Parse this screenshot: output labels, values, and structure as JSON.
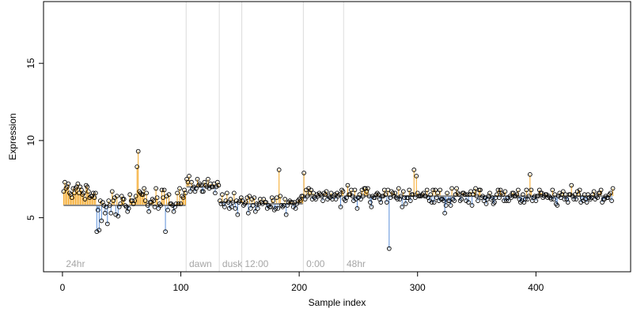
{
  "chart_data": {
    "type": "scatter",
    "xlabel": "Sample index",
    "ylabel": "Expression",
    "xlim": [
      -16,
      480
    ],
    "ylim": [
      1.5,
      19
    ],
    "x_ticks": [
      0,
      100,
      200,
      300,
      400
    ],
    "x_tick_labels": [
      "0",
      "100",
      "200",
      "300",
      "400"
    ],
    "y_ticks": [
      5,
      10,
      15
    ],
    "y_tick_labels": [
      "5",
      "10",
      "15"
    ],
    "grid": false,
    "legend": "none",
    "baseline_color": "#8a8a8a",
    "above_color": "#f5a623",
    "below_color": "#5b8fd9",
    "point_color": "#000000",
    "separator_color": "#dcdcdc",
    "groups": [
      {
        "label": "24hr",
        "start": 1,
        "end": 104,
        "baseline": 5.8
      },
      {
        "label": "dawn",
        "start": 105,
        "end": 132,
        "baseline": 7.0
      },
      {
        "label": "dusk",
        "start": 133,
        "end": 151,
        "baseline": 6.0
      },
      {
        "label": "12:00",
        "start": 152,
        "end": 203,
        "baseline": 5.9
      },
      {
        "label": "0:00",
        "start": 204,
        "end": 237,
        "baseline": 6.4
      },
      {
        "label": "48hr",
        "start": 238,
        "end": 462,
        "baseline": 6.4
      }
    ],
    "outliers": [
      [
        29,
        4.1
      ],
      [
        31,
        4.2
      ],
      [
        64,
        9.3
      ],
      [
        63,
        8.3
      ],
      [
        87,
        4.1
      ],
      [
        183,
        8.1
      ],
      [
        204,
        7.9
      ],
      [
        276,
        3.0
      ],
      [
        297,
        8.1
      ],
      [
        299,
        7.7
      ],
      [
        395,
        7.8
      ],
      [
        430,
        7.1
      ]
    ],
    "series": [
      {
        "y": [
          6.7,
          7.3,
          6.9,
          7.0,
          7.2,
          6.6,
          6.5,
          6.3,
          6.9,
          6.6,
          6.9,
          7.0,
          7.2,
          6.6,
          7.0,
          6.8,
          6.5,
          6.6,
          6.2,
          7.1,
          7.0,
          6.7,
          6.3,
          6.4,
          6.4,
          6.6,
          6.3,
          6.6,
          6.3,
          5.5,
          5.9,
          6.1,
          4.8,
          6.0,
          5.8,
          5.3,
          5.7,
          4.6,
          6.1,
          5.8,
          5.3,
          6.7,
          6.1,
          6.3,
          5.2,
          6.4,
          5.1,
          5.7,
          5.9,
          6.4,
          6.2,
          6.2,
          5.8,
          5.7,
          5.4,
          5.6,
          6.5,
          6.1,
          6.1,
          5.9,
          6.1,
          6.4,
          6.4,
          6.3,
          6.7,
          6.6,
          6.5,
          6.5,
          6.9,
          6.1,
          6.6,
          5.8,
          5.4,
          6.0,
          6.0,
          6.2,
          6.1,
          5.7,
          6.9,
          6.3,
          5.6,
          5.9,
          5.8,
          6.8,
          6.3,
          6.8,
          6.4,
          6.4,
          5.5,
          6.5,
          5.9,
          5.9,
          5.8,
          5.4,
          5.7,
          5.9,
          6.6,
          5.9,
          6.9,
          5.9,
          6.4,
          6.3,
          6.8,
          6.6,
          7.5,
          7.3,
          7.7,
          6.7,
          7.3,
          6.9,
          7.0,
          6.7,
          6.9,
          7.5,
          7.1,
          7.2,
          7.1,
          6.7,
          6.7,
          7.3,
          7.1,
          7.0,
          7.5,
          6.9,
          7.2,
          7.0,
          7.0,
          7.2,
          6.6,
          7.0,
          7.3,
          7.1,
          6.1,
          5.9,
          6.5,
          5.9,
          5.7,
          6.1,
          6.6,
          6.0,
          5.6,
          6.2,
          5.7,
          6.0,
          6.6,
          5.6,
          6.1,
          5.2,
          6.0,
          6.1,
          6.3,
          6.1,
          5.8,
          5.9,
          6.0,
          6.3,
          5.3,
          6.4,
          5.6,
          6.2,
          5.8,
          6.3,
          5.4,
          5.9,
          5.6,
          5.9,
          6.2,
          6.0,
          5.9,
          6.2,
          6.0,
          6.0,
          5.6,
          5.8,
          5.7,
          5.7,
          6.3,
          6.1,
          5.5,
          5.6,
          6.3,
          5.6,
          6.1,
          6.4,
          5.8,
          5.7,
          5.8,
          6.2,
          5.2,
          5.8,
          6.0,
          6.1,
          6.0,
          6.0,
          5.7,
          6.0,
          5.6,
          5.9,
          6.1,
          6.2,
          6.1,
          6.4,
          6.4,
          6.1,
          6.2,
          6.8,
          6.4,
          6.9,
          6.6,
          6.8,
          6.2,
          6.6,
          6.3,
          6.2,
          6.5,
          6.4,
          6.6,
          6.5,
          6.4,
          6.1,
          6.6,
          6.5,
          6.7,
          6.2,
          6.4,
          6.3,
          6.6,
          6.2,
          6.4,
          6.5,
          6.2,
          6.6,
          6.4,
          6.5,
          5.7,
          6.8,
          6.7,
          6.2,
          6.1,
          6.3,
          7.1,
          6.5,
          6.5,
          6.8,
          6.4,
          6.1,
          6.8,
          6.2,
          5.6,
          6.3,
          6.5,
          6.2,
          6.8,
          6.4,
          6.9,
          6.9,
          6.7,
          6.9,
          6.4,
          6.0,
          5.7,
          6.4,
          6.3,
          6.3,
          6.5,
          6.6,
          6.5,
          6.2,
          6.0,
          6.4,
          6.4,
          6.8,
          6.5,
          6.0,
          6.8,
          6.8,
          6.3,
          6.7,
          6.6,
          6.4,
          6.6,
          6.3,
          6.2,
          6.9,
          6.2,
          6.4,
          5.7,
          6.7,
          6.3,
          5.9,
          6.3,
          6.3,
          6.8,
          6.1,
          6.5,
          6.5,
          6.8,
          6.3,
          6.3,
          6.6,
          6.4,
          6.4,
          6.4,
          6.5,
          6.6,
          6.4,
          6.4,
          6.8,
          6.3,
          6.1,
          6.5,
          6.0,
          6.8,
          6.0,
          6.8,
          6.3,
          6.6,
          6.1,
          6.8,
          6.2,
          6.2,
          6.1,
          5.3,
          5.8,
          6.6,
          6.1,
          6.1,
          5.8,
          6.9,
          6.2,
          6.1,
          6.5,
          6.9,
          6.6,
          6.5,
          6.1,
          6.2,
          6.6,
          6.6,
          6.5,
          6.1,
          6.5,
          6.0,
          6.5,
          6.7,
          5.8,
          6.5,
          6.7,
          6.9,
          6.4,
          6.1,
          6.8,
          6.8,
          6.3,
          6.4,
          6.1,
          6.3,
          5.9,
          6.2,
          6.4,
          6.6,
          6.2,
          6.3,
          5.9,
          6.0,
          6.3,
          6.5,
          6.8,
          6.3,
          6.8,
          6.6,
          6.5,
          6.1,
          6.7,
          6.1,
          6.3,
          6.1,
          6.4,
          6.3,
          6.6,
          6.6,
          6.4,
          6.4,
          6.5,
          6.8,
          6.2,
          6.0,
          6.1,
          6.5,
          6.0,
          6.2,
          6.8,
          6.2,
          6.4,
          6.4,
          6.8,
          6.1,
          6.3,
          6.4,
          6.1,
          6.4,
          6.4,
          6.8,
          6.6,
          6.6,
          6.3,
          6.4,
          6.5,
          6.5,
          6.3,
          6.4,
          6.3,
          6.2,
          6.8,
          6.2,
          6.5,
          5.9,
          5.8,
          6.4,
          6.6,
          6.3,
          6.5,
          6.7,
          6.2,
          6.5,
          6.2,
          6.0,
          6.5,
          6.5,
          6.0,
          6.4,
          6.2,
          6.5,
          6.2,
          6.7,
          6.5,
          6.8,
          6.0,
          6.3,
          6.1,
          6.5,
          6.2,
          6.0,
          6.5,
          6.3,
          6.2,
          6.3,
          6.5,
          6.7,
          6.2,
          6.4,
          6.3,
          6.6,
          6.6,
          6.8,
          6.0,
          6.2,
          6.2,
          6.4,
          6.3,
          6.3,
          6.5,
          6.6,
          6.1,
          6.9
        ]
      }
    ]
  }
}
